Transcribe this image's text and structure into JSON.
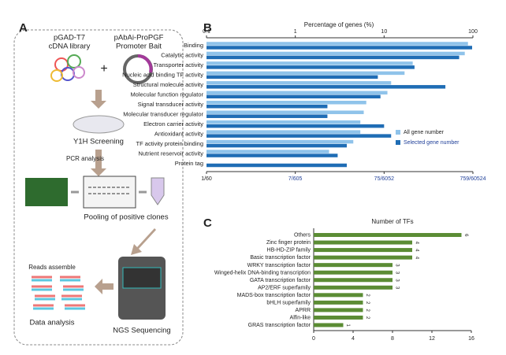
{
  "diagram": {
    "label": "A",
    "library_line1": "pGAD-T7",
    "library_line2": "cDNA library",
    "bait_line1": "pAbAi-ProPGF",
    "bait_line2": "Promoter Bait",
    "plus": "+",
    "screening": "Y1H Screening",
    "pcr": "PCR analysis",
    "pooling": "Pooling of positive clones",
    "reads": "Reads assemble",
    "ngs": "NGS Sequencing",
    "analysis": "Data analysis"
  },
  "chart_data": [
    {
      "type": "hbar",
      "label": "B",
      "x_label": "Percentage of genes (%)",
      "xlog": true,
      "categories": [
        "Binding",
        "Catalytic activity",
        "Transporter activity",
        "Nucleic acid binding TF activity",
        "Structural molecule activity",
        "Molecular function regulator",
        "Signal transducer activity",
        "Molecular transducer regulator",
        "Electron carrier activity",
        "Antioxidant activity",
        "TF activity protein binding",
        "Nutrient reservoir activity",
        "Protein tag"
      ],
      "series": [
        {
          "name": "All gene number",
          "color": "#8fc3ea",
          "values": [
            88,
            81,
            21,
            17,
            12,
            10.9,
            6.3,
            5.9,
            5.4,
            5.4,
            4.5,
            2.4,
            null
          ]
        },
        {
          "name": "Selected gene number",
          "color": "#1f6db5",
          "values": [
            98,
            70,
            22,
            8.5,
            49,
            9.1,
            2.3,
            2.3,
            10,
            12,
            3.8,
            3.0,
            3.8
          ]
        }
      ],
      "xlim": [
        0.1,
        100
      ],
      "xticks": [
        0.1,
        1,
        10,
        100
      ],
      "x2ticks": [
        "1/60",
        "7/605",
        "75/6052",
        "759/60524"
      ],
      "legend": "lower right"
    },
    {
      "type": "hbar",
      "label": "C",
      "x_label": "Number of TFs",
      "xlog": false,
      "categories": [
        "Others",
        "Zinc finger protein",
        "HB-HD-ZIP family",
        "Basic transcription factor",
        "WRKY transcription factor",
        "Winged-helix DNA-binding transcription",
        "GATA transcription factor",
        "AP2/ERF superfamily",
        "MADS-box transcription factor",
        "bHLH superfamily",
        "APRR",
        "Alfin-like",
        "GRAS transcription factor"
      ],
      "series": [
        {
          "color": "#5b8c34",
          "values": [
            15,
            10,
            10,
            10,
            8,
            8,
            8,
            8,
            5,
            5,
            5,
            5,
            3
          ]
        }
      ],
      "annotations": [
        6,
        4,
        4,
        4,
        3,
        3,
        3,
        3,
        2,
        2,
        2,
        2,
        1
      ],
      "xlim": [
        0,
        16
      ],
      "xticks": [
        0,
        4,
        8,
        12,
        16
      ]
    }
  ]
}
